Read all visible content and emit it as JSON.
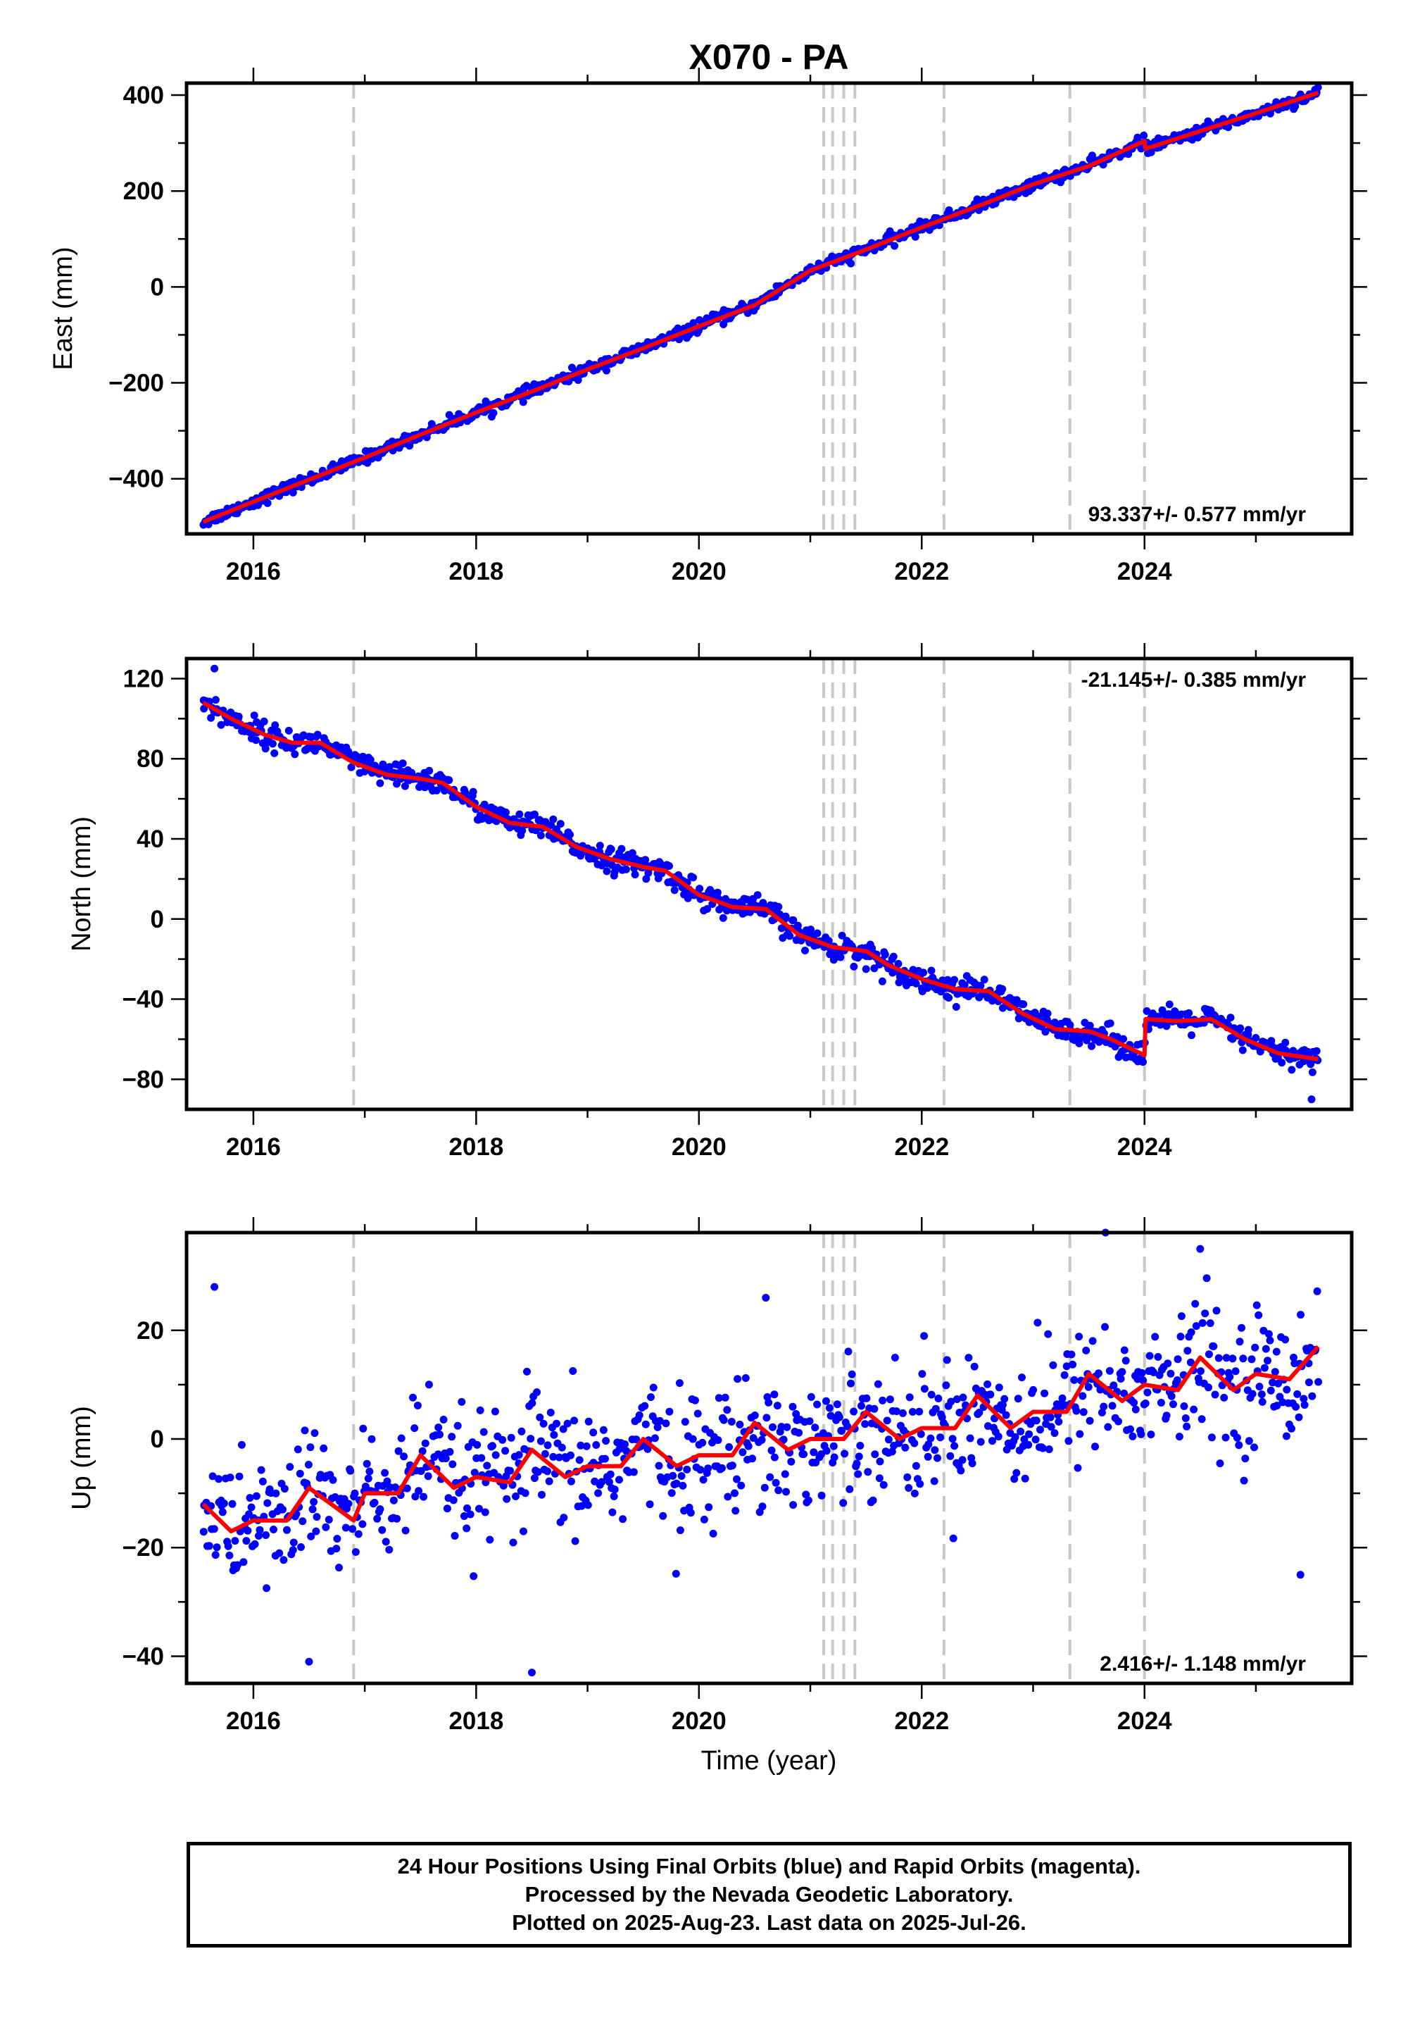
{
  "title": "X070 - PA",
  "xlabel": "Time (year)",
  "colors": {
    "data": "#0000ff",
    "model": "#ff0000",
    "events": "#c8c8c8"
  },
  "event_years": [
    2016.9,
    2021.12,
    2021.2,
    2021.3,
    2021.4,
    2022.2,
    2023.33,
    2024.0
  ],
  "footer": {
    "lines": [
      "24 Hour Positions Using Final Orbits (blue) and Rapid Orbits (magenta).",
      "Processed by the Nevada Geodetic Laboratory.",
      "Plotted on 2025-Aug-23. Last data on 2025-Jul-26."
    ]
  },
  "chart_data": [
    {
      "type": "scatter",
      "component": "east",
      "ylabel": "East (mm)",
      "xlim": [
        2015.4,
        2025.86
      ],
      "ylim": [
        -515,
        425
      ],
      "xticks": [
        2016,
        2018,
        2020,
        2022,
        2024
      ],
      "xtick_labels": [
        "2016",
        "2018",
        "2020",
        "2022",
        "2024"
      ],
      "yticks": [
        -400,
        -200,
        0,
        200,
        400
      ],
      "ytick_labels": [
        "−400",
        "−200",
        "0",
        "200",
        "400"
      ],
      "rate_text": "93.337+/- 0.577 mm/yr",
      "rate_position": "bottom-right",
      "model_series": {
        "x": [
          2015.55,
          2016.0,
          2016.5,
          2017.0,
          2017.5,
          2018.0,
          2018.5,
          2019.0,
          2019.5,
          2020.0,
          2020.5,
          2021.0,
          2021.5,
          2022.0,
          2022.5,
          2023.0,
          2023.5,
          2024.0,
          2024.01,
          2024.5,
          2025.0,
          2025.56
        ],
        "y": [
          -490,
          -448,
          -402,
          -356,
          -308,
          -262,
          -218,
          -172,
          -128,
          -82,
          -38,
          34,
          78,
          124,
          168,
          214,
          252,
          304,
          288,
          325,
          362,
          405
        ]
      },
      "observations_summary": {
        "count": "daily",
        "scatter_mm": 6,
        "outliers": []
      }
    },
    {
      "type": "scatter",
      "component": "north",
      "ylabel": "North (mm)",
      "xlim": [
        2015.4,
        2025.86
      ],
      "ylim": [
        -95,
        130
      ],
      "xticks": [
        2016,
        2018,
        2020,
        2022,
        2024
      ],
      "xtick_labels": [
        "2016",
        "2018",
        "2020",
        "2022",
        "2024"
      ],
      "yticks": [
        -80,
        -40,
        0,
        40,
        80,
        120
      ],
      "ytick_labels": [
        "−80",
        "−40",
        "0",
        "40",
        "80",
        "120"
      ],
      "rate_text": "-21.145+/- 0.385 mm/yr",
      "rate_position": "top-right",
      "model_series": {
        "x": [
          2015.55,
          2015.8,
          2016.1,
          2016.35,
          2016.6,
          2016.9,
          2017.2,
          2017.5,
          2017.7,
          2018.0,
          2018.3,
          2018.6,
          2018.9,
          2019.2,
          2019.5,
          2019.7,
          2020.0,
          2020.3,
          2020.6,
          2020.9,
          2021.2,
          2021.5,
          2021.7,
          2022.0,
          2022.3,
          2022.6,
          2022.9,
          2023.2,
          2023.5,
          2023.7,
          2024.0,
          2024.01,
          2024.3,
          2024.6,
          2024.9,
          2025.2,
          2025.56
        ],
        "y": [
          108,
          100,
          92,
          88,
          88,
          78,
          72,
          70,
          68,
          56,
          48,
          46,
          36,
          30,
          26,
          24,
          12,
          6,
          5,
          -8,
          -14,
          -16,
          -23,
          -30,
          -35,
          -36,
          -47,
          -55,
          -56,
          -60,
          -68,
          -50,
          -51,
          -50,
          -60,
          -67,
          -70
        ]
      },
      "observations_summary": {
        "count": "daily",
        "scatter_mm": 3,
        "outliers": [
          [
            2015.65,
            125
          ],
          [
            2025.5,
            -90
          ],
          [
            2021.5,
            -25
          ]
        ]
      }
    },
    {
      "type": "scatter",
      "component": "up",
      "ylabel": "Up (mm)",
      "xlim": [
        2015.4,
        2025.86
      ],
      "ylim": [
        -45,
        38
      ],
      "xticks": [
        2016,
        2018,
        2020,
        2022,
        2024
      ],
      "xtick_labels": [
        "2016",
        "2018",
        "2020",
        "2022",
        "2024"
      ],
      "yticks": [
        -40,
        -20,
        0,
        20
      ],
      "ytick_labels": [
        "−40",
        "−20",
        "0",
        "20"
      ],
      "rate_text": "2.416+/- 1.148 mm/yr",
      "rate_position": "bottom-right",
      "model_series": {
        "x": [
          2015.55,
          2015.8,
          2016.0,
          2016.3,
          2016.5,
          2016.9,
          2017.0,
          2017.3,
          2017.5,
          2017.8,
          2018.0,
          2018.3,
          2018.5,
          2018.8,
          2019.0,
          2019.3,
          2019.5,
          2019.8,
          2020.0,
          2020.3,
          2020.5,
          2020.8,
          2021.0,
          2021.3,
          2021.5,
          2021.8,
          2022.0,
          2022.3,
          2022.5,
          2022.8,
          2023.0,
          2023.3,
          2023.5,
          2023.8,
          2024.0,
          2024.3,
          2024.5,
          2024.8,
          2025.0,
          2025.3,
          2025.56
        ],
        "y": [
          -12,
          -17,
          -15,
          -15,
          -9,
          -15,
          -10,
          -10,
          -3,
          -9,
          -7,
          -8,
          -2,
          -7,
          -5,
          -5,
          0,
          -5,
          -3,
          -3,
          3,
          -2,
          0,
          0,
          5,
          0,
          2,
          2,
          8,
          2,
          5,
          5,
          12,
          7,
          10,
          9,
          15,
          9,
          12,
          11,
          17
        ]
      },
      "observations_summary": {
        "count": "daily",
        "scatter_mm": 6,
        "outliers": [
          [
            2015.65,
            28
          ],
          [
            2016.5,
            -41
          ],
          [
            2018.5,
            -43
          ],
          [
            2020.6,
            26
          ],
          [
            2023.65,
            38
          ],
          [
            2024.5,
            35
          ],
          [
            2025.4,
            -25
          ]
        ]
      }
    }
  ]
}
